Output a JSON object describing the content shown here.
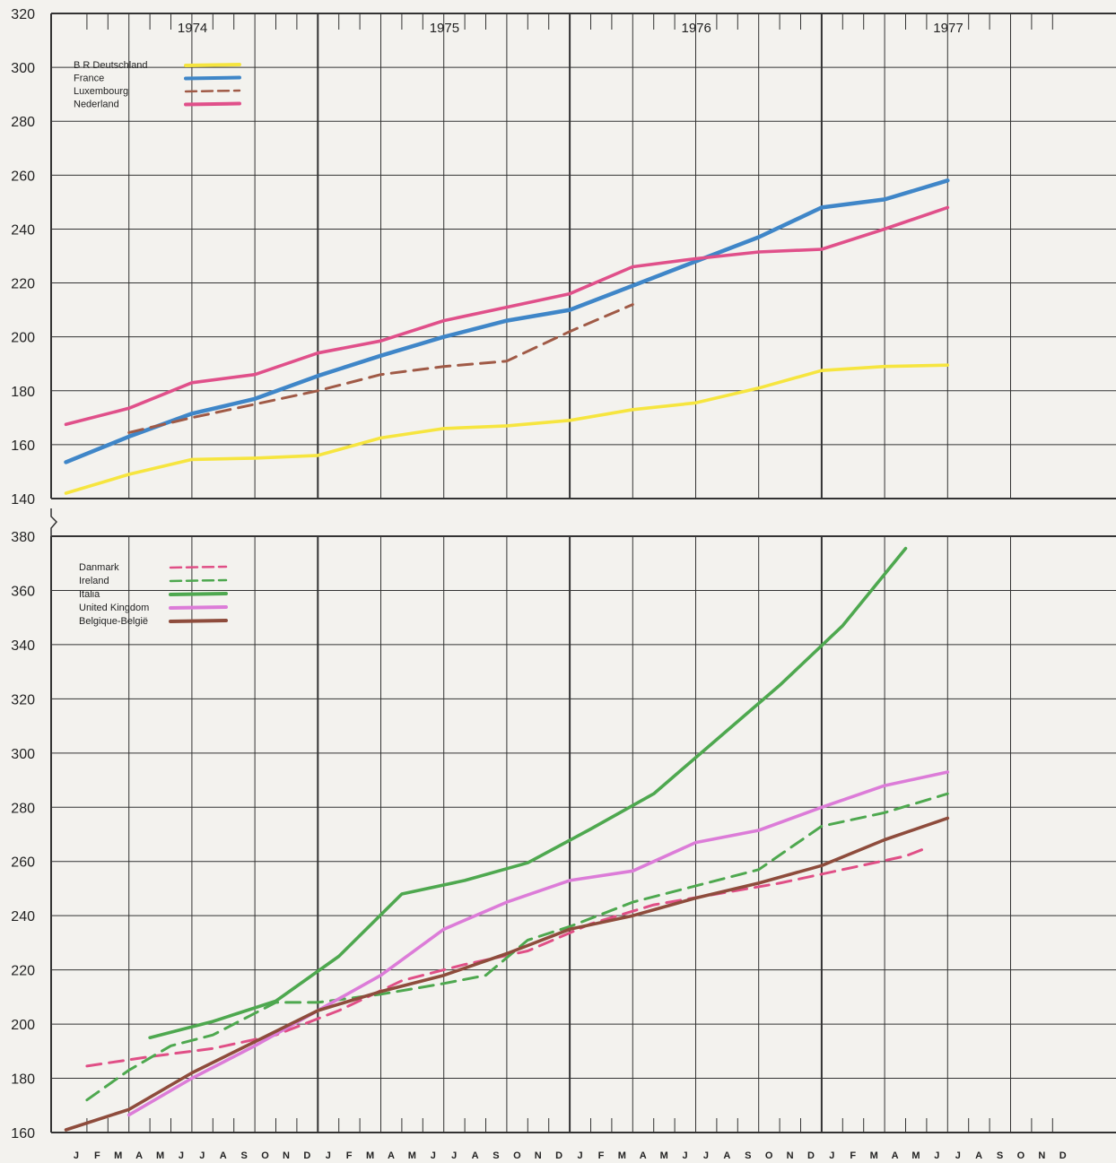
{
  "x_months": [
    "J",
    "F",
    "M",
    "A",
    "M",
    "J",
    "J",
    "A",
    "S",
    "O",
    "N",
    "D",
    "J",
    "F",
    "M",
    "A",
    "M",
    "J",
    "J",
    "A",
    "S",
    "O",
    "N",
    "D",
    "J",
    "F",
    "M",
    "A",
    "M",
    "J",
    "J",
    "A",
    "S",
    "O",
    "N",
    "D",
    "J",
    "F",
    "M",
    "A",
    "M",
    "J",
    "J",
    "A",
    "S",
    "O",
    "N",
    "D"
  ],
  "colors": {
    "background": "#f3f2ee",
    "grid": "#333333",
    "yellow": "#f6e53f",
    "blue": "#3f86c8",
    "brown_dashed": "#a05a46",
    "pink": "#e0508a",
    "dk_pink": "#e04f86",
    "green": "#4ea84f",
    "violet": "#dc7cd8",
    "brown": "#8e4c3c"
  },
  "chart_data": [
    {
      "type": "line",
      "years": [
        "1974",
        "1975",
        "1976",
        "1977"
      ],
      "ylim": [
        140,
        320
      ],
      "yticks": [
        "140",
        "160",
        "180",
        "200",
        "220",
        "240",
        "260",
        "280",
        "300",
        "320"
      ],
      "legend": "top-left",
      "grid": true,
      "series": [
        {
          "name": "B R  Deutschland",
          "color": "#f6e53f",
          "dash": false,
          "points": [
            [
              0,
              142
            ],
            [
              3,
              149
            ],
            [
              6,
              154.5
            ],
            [
              9,
              155
            ],
            [
              12,
              156
            ],
            [
              15,
              162.5
            ],
            [
              18,
              166
            ],
            [
              21,
              167
            ],
            [
              24,
              169
            ],
            [
              27,
              173
            ],
            [
              30,
              175.5
            ],
            [
              33,
              181
            ],
            [
              36,
              187.5
            ],
            [
              39,
              189
            ],
            [
              42,
              189.5
            ]
          ]
        },
        {
          "name": "France",
          "color": "#3f86c8",
          "dash": false,
          "points": [
            [
              0,
              153.5
            ],
            [
              3,
              163
            ],
            [
              6,
              171.5
            ],
            [
              9,
              177
            ],
            [
              12,
              185.5
            ],
            [
              15,
              193
            ],
            [
              18,
              200
            ],
            [
              21,
              206
            ],
            [
              24,
              210
            ],
            [
              27,
              219
            ],
            [
              30,
              228
            ],
            [
              33,
              237
            ],
            [
              36,
              248
            ],
            [
              39,
              251
            ],
            [
              42,
              258
            ]
          ]
        },
        {
          "name": "Luxembourg",
          "color": "#a05a46",
          "dash": true,
          "points": [
            [
              3,
              164.5
            ],
            [
              6,
              170
            ],
            [
              9,
              175
            ],
            [
              12,
              180
            ],
            [
              15,
              186
            ],
            [
              18,
              189
            ],
            [
              21,
              191
            ],
            [
              24,
              202
            ],
            [
              27,
              212
            ]
          ]
        },
        {
          "name": "Nederland",
          "color": "#e0508a",
          "dash": false,
          "points": [
            [
              0,
              167.5
            ],
            [
              3,
              173.5
            ],
            [
              6,
              183
            ],
            [
              9,
              186
            ],
            [
              12,
              194
            ],
            [
              15,
              198.5
            ],
            [
              18,
              206
            ],
            [
              21,
              211
            ],
            [
              24,
              216
            ],
            [
              27,
              226
            ],
            [
              30,
              229
            ],
            [
              33,
              231.5
            ],
            [
              36,
              232.5
            ],
            [
              39,
              240
            ],
            [
              42,
              248
            ]
          ]
        }
      ]
    },
    {
      "type": "line",
      "years": [],
      "ylim": [
        160,
        380
      ],
      "yticks": [
        "160",
        "180",
        "200",
        "220",
        "240",
        "260",
        "280",
        "300",
        "320",
        "340",
        "360",
        "380"
      ],
      "legend": "top-left",
      "grid": true,
      "series": [
        {
          "name": "Danmark",
          "color": "#e04f86",
          "dash": true,
          "points": [
            [
              1,
              184.5
            ],
            [
              4,
              188
            ],
            [
              7,
              191
            ],
            [
              10,
              196
            ],
            [
              13,
              205
            ],
            [
              16,
              216
            ],
            [
              19,
              222
            ],
            [
              22,
              227
            ],
            [
              25,
              237
            ],
            [
              28,
              244
            ],
            [
              31,
              248
            ],
            [
              34,
              252
            ],
            [
              37,
              257
            ],
            [
              40,
              262
            ],
            [
              41,
              265
            ]
          ]
        },
        {
          "name": "Ireland",
          "color": "#4ea84f",
          "dash": true,
          "points": [
            [
              1,
              172
            ],
            [
              3,
              183
            ],
            [
              5,
              192
            ],
            [
              7,
              196
            ],
            [
              10,
              208
            ],
            [
              12,
              208
            ],
            [
              15,
              211
            ],
            [
              18,
              215
            ],
            [
              20,
              218
            ],
            [
              22,
              231
            ],
            [
              24,
              236
            ],
            [
              27,
              245
            ],
            [
              30,
              251
            ],
            [
              33,
              257
            ],
            [
              36,
              273
            ],
            [
              39,
              278
            ],
            [
              42,
              285
            ]
          ]
        },
        {
          "name": "Italia",
          "color": "#4ea84f",
          "dash": false,
          "points": [
            [
              4,
              195
            ],
            [
              7,
              201
            ],
            [
              10,
              208.5
            ],
            [
              13,
              225
            ],
            [
              16,
              248
            ],
            [
              19,
              253
            ],
            [
              22,
              259.5
            ],
            [
              25,
              272
            ],
            [
              28,
              285
            ],
            [
              31,
              305
            ],
            [
              34,
              325
            ],
            [
              37,
              347
            ],
            [
              40,
              375.5
            ]
          ]
        },
        {
          "name": "United Kingdom",
          "color": "#dc7cd8",
          "dash": false,
          "points": [
            [
              3,
              166.5
            ],
            [
              6,
              180
            ],
            [
              9,
              192
            ],
            [
              12,
              205
            ],
            [
              15,
              218
            ],
            [
              18,
              235
            ],
            [
              21,
              245
            ],
            [
              24,
              253
            ],
            [
              27,
              256.5
            ],
            [
              30,
              267
            ],
            [
              33,
              271.5
            ],
            [
              36,
              280
            ],
            [
              39,
              288
            ],
            [
              42,
              293
            ]
          ]
        },
        {
          "name": "Belgique-België",
          "color": "#8e4c3c",
          "dash": false,
          "points": [
            [
              0,
              161
            ],
            [
              3,
              168.5
            ],
            [
              6,
              182
            ],
            [
              9,
              193.5
            ],
            [
              12,
              205
            ],
            [
              15,
              212
            ],
            [
              18,
              218
            ],
            [
              21,
              226
            ],
            [
              24,
              235
            ],
            [
              27,
              240
            ],
            [
              30,
              246.5
            ],
            [
              33,
              252
            ],
            [
              36,
              258.5
            ],
            [
              39,
              268
            ],
            [
              42,
              276
            ]
          ]
        }
      ]
    }
  ]
}
